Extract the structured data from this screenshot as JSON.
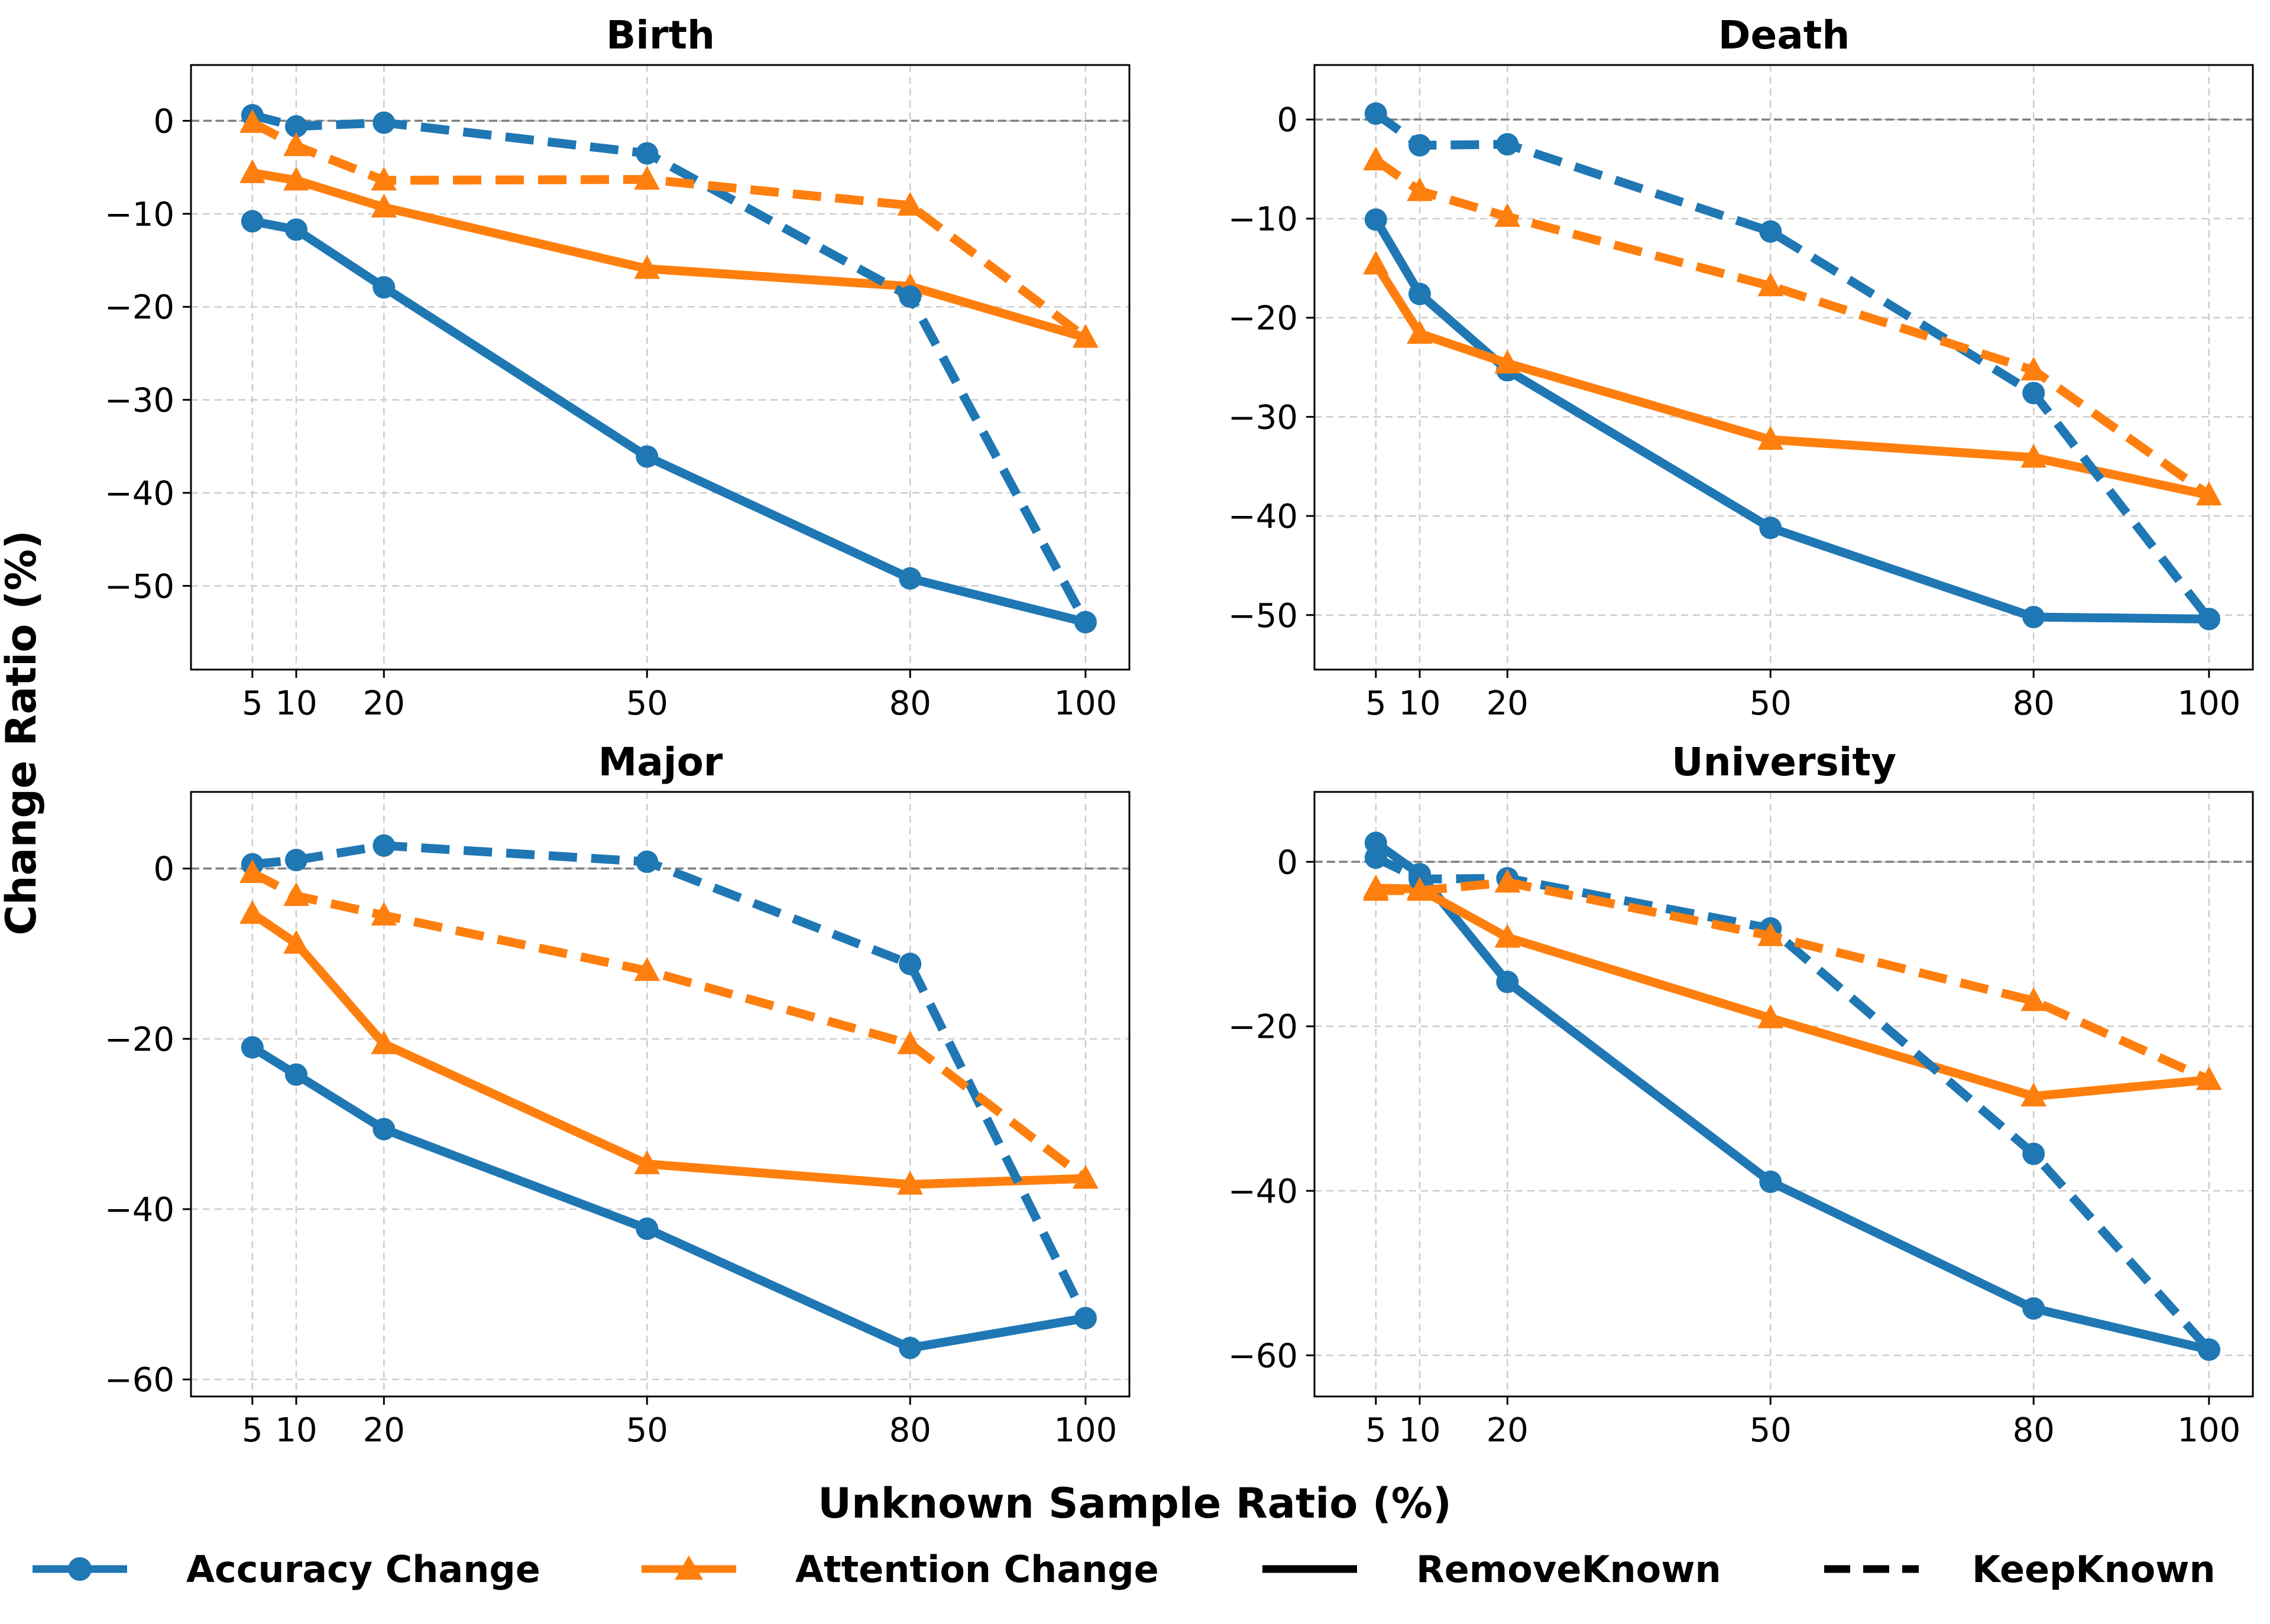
{
  "figure": {
    "ylabel": "Change Ratio (%)",
    "xlabel": "Unknown Sample Ratio (%)"
  },
  "legend": {
    "items": [
      {
        "label": "Accuracy Change",
        "color": "#1f77b4",
        "marker": "circle",
        "line": "solid"
      },
      {
        "label": "Attention Change",
        "color": "#ff7f0e",
        "marker": "triangle",
        "line": "solid"
      },
      {
        "label": "RemoveKnown",
        "color": "#000000",
        "marker": "none",
        "line": "solid"
      },
      {
        "label": "KeepKnown",
        "color": "#000000",
        "marker": "none",
        "line": "dashed"
      }
    ]
  },
  "colors": {
    "accuracy": "#1f77b4",
    "attention": "#ff7f0e",
    "zero_line": "#808080",
    "grid": "#cccccc"
  },
  "chart_data": [
    {
      "type": "line",
      "title": "Birth",
      "x": [
        5,
        10,
        20,
        50,
        80,
        100
      ],
      "x_ticks": [
        "5",
        "10",
        "20",
        "50",
        "80",
        "100"
      ],
      "xlim": [
        -2,
        105
      ],
      "ylim": [
        -59,
        6
      ],
      "y_ticks": [
        0,
        -10,
        -20,
        -30,
        -40,
        -50
      ],
      "y_tick_labels": [
        "0",
        "−10",
        "−20",
        "−30",
        "−40",
        "−50"
      ],
      "series": [
        {
          "name": "Accuracy Change (RemoveKnown)",
          "metric": "accuracy",
          "style": "solid",
          "values": [
            -10.8,
            -11.7,
            -17.9,
            -36.1,
            -49.2,
            -53.9
          ]
        },
        {
          "name": "Attention Change (RemoveKnown)",
          "metric": "attention",
          "style": "solid",
          "values": [
            -5.6,
            -6.4,
            -9.3,
            -15.9,
            -17.8,
            -23.3
          ]
        },
        {
          "name": "Accuracy Change (KeepKnown)",
          "metric": "accuracy",
          "style": "dashed",
          "values": [
            0.6,
            -0.6,
            -0.2,
            -3.5,
            -18.9,
            -53.9
          ]
        },
        {
          "name": "Attention Change (KeepKnown)",
          "metric": "attention",
          "style": "dashed",
          "values": [
            -0.2,
            -2.7,
            -6.4,
            -6.3,
            -9.1,
            -23.3
          ]
        }
      ]
    },
    {
      "type": "line",
      "title": "Death",
      "x": [
        5,
        10,
        20,
        50,
        80,
        100
      ],
      "x_ticks": [
        "5",
        "10",
        "20",
        "50",
        "80",
        "100"
      ],
      "xlim": [
        -2,
        105
      ],
      "ylim": [
        -55.5,
        5.5
      ],
      "y_ticks": [
        0,
        -10,
        -20,
        -30,
        -40,
        -50
      ],
      "y_tick_labels": [
        "0",
        "−10",
        "−20",
        "−30",
        "−40",
        "−50"
      ],
      "series": [
        {
          "name": "Accuracy Change (RemoveKnown)",
          "metric": "accuracy",
          "style": "solid",
          "values": [
            -10.1,
            -17.6,
            -25.3,
            -41.2,
            -50.2,
            -50.4
          ]
        },
        {
          "name": "Attention Change (RemoveKnown)",
          "metric": "attention",
          "style": "solid",
          "values": [
            -14.6,
            -21.6,
            -24.6,
            -32.3,
            -34.1,
            -37.9
          ]
        },
        {
          "name": "Accuracy Change (KeepKnown)",
          "metric": "accuracy",
          "style": "dashed",
          "values": [
            0.6,
            -2.6,
            -2.5,
            -11.3,
            -27.6,
            -50.4
          ]
        },
        {
          "name": "Attention Change (KeepKnown)",
          "metric": "attention",
          "style": "dashed",
          "values": [
            -4.1,
            -7.2,
            -9.8,
            -16.8,
            -25.3,
            -37.9
          ]
        }
      ]
    },
    {
      "type": "line",
      "title": "Major",
      "x": [
        5,
        10,
        20,
        50,
        80,
        100
      ],
      "x_ticks": [
        "5",
        "10",
        "20",
        "50",
        "80",
        "100"
      ],
      "xlim": [
        -2,
        105
      ],
      "ylim": [
        -62,
        9
      ],
      "y_ticks": [
        0,
        -20,
        -40,
        -60
      ],
      "y_tick_labels": [
        "0",
        "−20",
        "−40",
        "−60"
      ],
      "series": [
        {
          "name": "Accuracy Change (RemoveKnown)",
          "metric": "accuracy",
          "style": "solid",
          "values": [
            -21.0,
            -24.2,
            -30.6,
            -42.3,
            -56.3,
            -52.8
          ]
        },
        {
          "name": "Attention Change (RemoveKnown)",
          "metric": "attention",
          "style": "solid",
          "values": [
            -5.3,
            -8.8,
            -20.6,
            -34.7,
            -37.1,
            -36.4
          ]
        },
        {
          "name": "Accuracy Change (KeepKnown)",
          "metric": "accuracy",
          "style": "dashed",
          "values": [
            0.5,
            1.0,
            2.7,
            0.8,
            -11.2,
            -52.8
          ]
        },
        {
          "name": "Attention Change (KeepKnown)",
          "metric": "attention",
          "style": "dashed",
          "values": [
            -0.5,
            -3.2,
            -5.5,
            -12.0,
            -20.6,
            -36.4
          ]
        }
      ]
    },
    {
      "type": "line",
      "title": "University",
      "x": [
        5,
        10,
        20,
        50,
        80,
        100
      ],
      "x_ticks": [
        "5",
        "10",
        "20",
        "50",
        "80",
        "100"
      ],
      "xlim": [
        -2,
        105
      ],
      "ylim": [
        -65,
        8.5
      ],
      "y_ticks": [
        0,
        -20,
        -40,
        -60
      ],
      "y_tick_labels": [
        "0",
        "−20",
        "−40",
        "−60"
      ],
      "series": [
        {
          "name": "Accuracy Change (RemoveKnown)",
          "metric": "accuracy",
          "style": "solid",
          "values": [
            2.3,
            -1.5,
            -14.6,
            -38.9,
            -54.3,
            -59.3
          ]
        },
        {
          "name": "Attention Change (RemoveKnown)",
          "metric": "attention",
          "style": "solid",
          "values": [
            -3.2,
            -3.3,
            -9.2,
            -19.0,
            -28.5,
            -26.5
          ]
        },
        {
          "name": "Accuracy Change (KeepKnown)",
          "metric": "accuracy",
          "style": "dashed",
          "values": [
            0.5,
            -2.1,
            -2.0,
            -8.1,
            -35.5,
            -59.3
          ]
        },
        {
          "name": "Attention Change (KeepKnown)",
          "metric": "attention",
          "style": "dashed",
          "values": [
            -3.5,
            -3.5,
            -2.5,
            -9.0,
            -16.9,
            -26.5
          ]
        }
      ]
    }
  ]
}
